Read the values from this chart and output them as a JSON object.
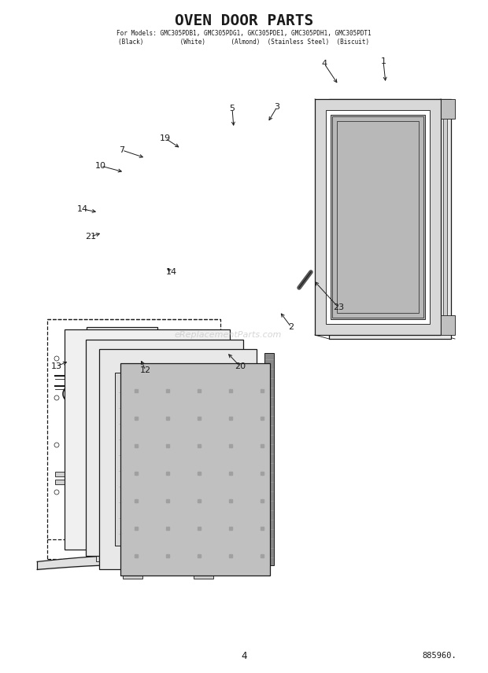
{
  "title": "OVEN DOOR PARTS",
  "subtitle_line1": "For Models: GMC305PDB1, GMC305PDG1, GKC305PDE1, GMC305PDH1, GMC305PDT1",
  "subtitle_line2": "(Black)          (White)       (Almond)  (Stainless Steel)  (Biscuit)",
  "page_number": "4",
  "part_number": "885960.",
  "watermark": "eReplacementParts.com",
  "bg_color": "#ffffff",
  "line_color": "#1a1a1a"
}
